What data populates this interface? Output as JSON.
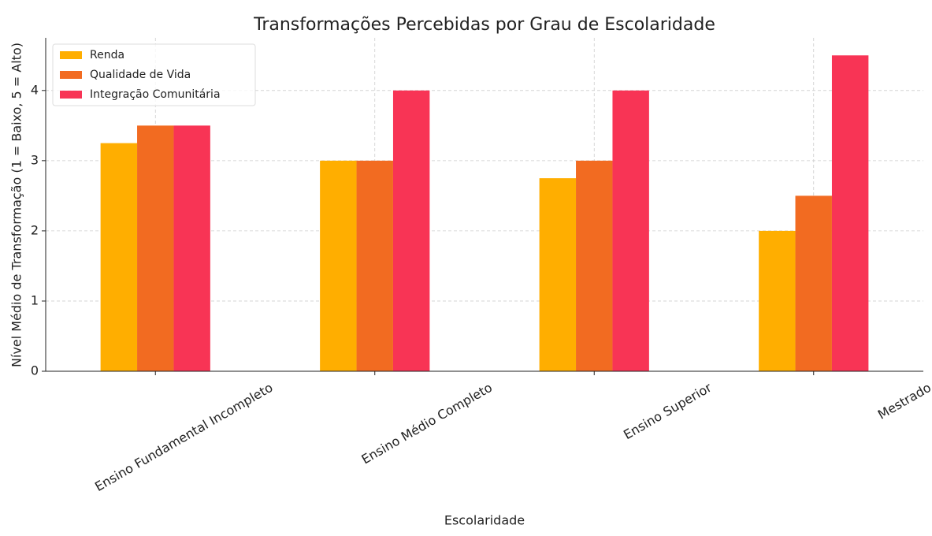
{
  "chart_data": {
    "type": "bar",
    "title": "Transformações Percebidas por Grau de Escolaridade",
    "xlabel": "Escolaridade",
    "ylabel": "Nível Médio de Transformação (1 = Baixo, 5 = Alto)",
    "categories": [
      "Ensino Fundamental Incompleto",
      "Ensino Médio Completo",
      "Ensino Superior",
      "Mestrado"
    ],
    "series": [
      {
        "name": "Renda",
        "color": "#ffae00",
        "values": [
          3.25,
          3,
          2.75,
          2
        ]
      },
      {
        "name": "Qualidade de Vida",
        "color": "#f26b21",
        "values": [
          3.5,
          3,
          3,
          2.5
        ]
      },
      {
        "name": "Integração Comunitária",
        "color": "#f83455",
        "values": [
          3.5,
          4,
          4,
          4.5
        ]
      }
    ],
    "ylim": [
      0,
      4.75
    ],
    "yticks": [
      0,
      1,
      2,
      3,
      4
    ],
    "grid": true,
    "legend": "upper left"
  }
}
